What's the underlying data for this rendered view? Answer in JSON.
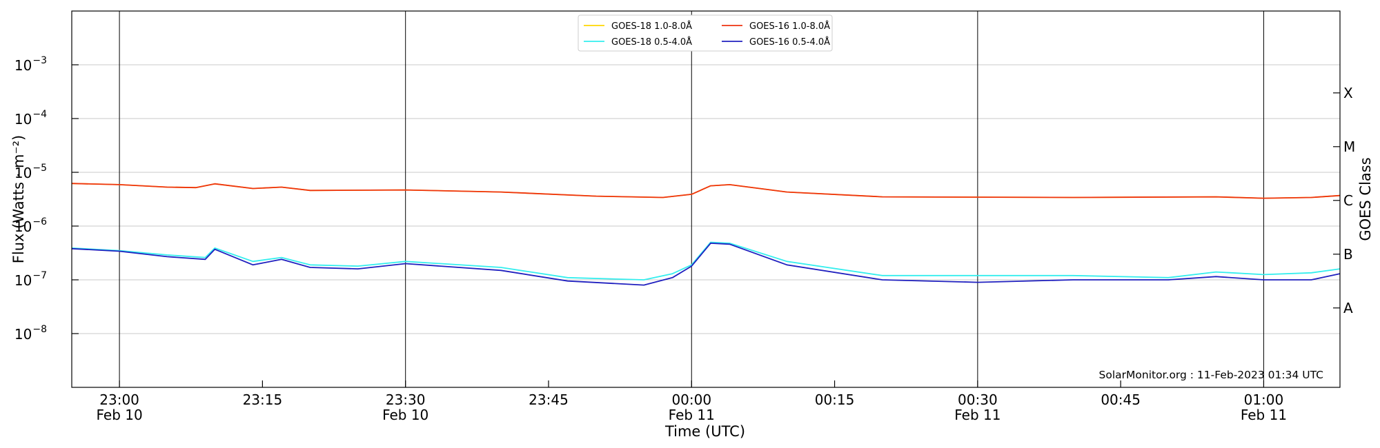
{
  "chart_data": {
    "type": "line",
    "xlabel": "Time (UTC)",
    "ylabel": "Flux (Watts · m⁻²)",
    "ylabel_right": "GOES Class",
    "credit": "SolarMonitor.org : 11-Feb-2023 01:34 UTC",
    "y_scale": "log",
    "ylim": [
      1e-09,
      0.01
    ],
    "xlim": [
      "2023-02-10 22:55",
      "2023-02-11 01:08"
    ],
    "grid": "horizontal at decades; vertical lines every 30 min",
    "legend_position": "top-center",
    "x_ticks": [
      {
        "t": "2023-02-10 23:00",
        "time": "23:00",
        "date": "Feb 10"
      },
      {
        "t": "2023-02-10 23:15",
        "time": "23:15",
        "date": ""
      },
      {
        "t": "2023-02-10 23:30",
        "time": "23:30",
        "date": "Feb 10"
      },
      {
        "t": "2023-02-10 23:45",
        "time": "23:45",
        "date": ""
      },
      {
        "t": "2023-02-11 00:00",
        "time": "00:00",
        "date": "Feb 11"
      },
      {
        "t": "2023-02-11 00:15",
        "time": "00:15",
        "date": ""
      },
      {
        "t": "2023-02-11 00:30",
        "time": "00:30",
        "date": "Feb 11"
      },
      {
        "t": "2023-02-11 00:45",
        "time": "00:45",
        "date": ""
      },
      {
        "t": "2023-02-11 01:00",
        "time": "01:00",
        "date": "Feb 11"
      }
    ],
    "vertical_lines": [
      "2023-02-10 23:00",
      "2023-02-10 23:30",
      "2023-02-11 00:00",
      "2023-02-11 00:30",
      "2023-02-11 01:00"
    ],
    "y_ticks": [
      {
        "value": 1e-08,
        "base": "10",
        "exp": "−8"
      },
      {
        "value": 1e-07,
        "base": "10",
        "exp": "−7"
      },
      {
        "value": 1e-06,
        "base": "10",
        "exp": "−6"
      },
      {
        "value": 1e-05,
        "base": "10",
        "exp": "−5"
      },
      {
        "value": 0.0001,
        "base": "10",
        "exp": "−4"
      },
      {
        "value": 0.001,
        "base": "10",
        "exp": "−3"
      }
    ],
    "class_labels": [
      {
        "label": "A",
        "value": 3e-08
      },
      {
        "label": "B",
        "value": 3e-07
      },
      {
        "label": "C",
        "value": 3e-06
      },
      {
        "label": "M",
        "value": 3e-05
      },
      {
        "label": "X",
        "value": 0.0003
      }
    ],
    "series": [
      {
        "name": "GOES-18 1.0-8.0Å",
        "color": "#ffd700",
        "points": [
          [
            "2023-02-10 22:55",
            6.2e-06
          ],
          [
            "2023-02-10 23:00",
            5.9e-06
          ],
          [
            "2023-02-10 23:05",
            5.3e-06
          ],
          [
            "2023-02-10 23:08",
            5.2e-06
          ],
          [
            "2023-02-10 23:10",
            6.1e-06
          ],
          [
            "2023-02-10 23:14",
            5e-06
          ],
          [
            "2023-02-10 23:17",
            5.3e-06
          ],
          [
            "2023-02-10 23:20",
            4.6e-06
          ],
          [
            "2023-02-10 23:30",
            4.7e-06
          ],
          [
            "2023-02-10 23:40",
            4.3e-06
          ],
          [
            "2023-02-10 23:50",
            3.6e-06
          ],
          [
            "2023-02-10 23:57",
            3.4e-06
          ],
          [
            "2023-02-11 00:00",
            3.9e-06
          ],
          [
            "2023-02-11 00:02",
            5.6e-06
          ],
          [
            "2023-02-11 00:04",
            5.9e-06
          ],
          [
            "2023-02-11 00:10",
            4.3e-06
          ],
          [
            "2023-02-11 00:20",
            3.5e-06
          ],
          [
            "2023-02-11 00:40",
            3.4e-06
          ],
          [
            "2023-02-11 00:55",
            3.5e-06
          ],
          [
            "2023-02-11 01:00",
            3.3e-06
          ],
          [
            "2023-02-11 01:05",
            3.4e-06
          ],
          [
            "2023-02-11 01:08",
            3.7e-06
          ]
        ]
      },
      {
        "name": "GOES-18 0.5-4.0Å",
        "color": "#33eeee",
        "points": [
          [
            "2023-02-10 22:55",
            3.9e-07
          ],
          [
            "2023-02-10 23:00",
            3.5e-07
          ],
          [
            "2023-02-10 23:05",
            2.9e-07
          ],
          [
            "2023-02-10 23:09",
            2.6e-07
          ],
          [
            "2023-02-10 23:10",
            3.9e-07
          ],
          [
            "2023-02-10 23:14",
            2.2e-07
          ],
          [
            "2023-02-10 23:17",
            2.6e-07
          ],
          [
            "2023-02-10 23:20",
            1.9e-07
          ],
          [
            "2023-02-10 23:25",
            1.8e-07
          ],
          [
            "2023-02-10 23:30",
            2.2e-07
          ],
          [
            "2023-02-10 23:40",
            1.7e-07
          ],
          [
            "2023-02-10 23:47",
            1.1e-07
          ],
          [
            "2023-02-10 23:55",
            1e-07
          ],
          [
            "2023-02-10 23:58",
            1.3e-07
          ],
          [
            "2023-02-11 00:00",
            1.9e-07
          ],
          [
            "2023-02-11 00:02",
            5e-07
          ],
          [
            "2023-02-11 00:04",
            4.8e-07
          ],
          [
            "2023-02-11 00:10",
            2.2e-07
          ],
          [
            "2023-02-11 00:20",
            1.2e-07
          ],
          [
            "2023-02-11 00:30",
            1.2e-07
          ],
          [
            "2023-02-11 00:40",
            1.2e-07
          ],
          [
            "2023-02-11 00:50",
            1.1e-07
          ],
          [
            "2023-02-11 00:55",
            1.4e-07
          ],
          [
            "2023-02-11 01:00",
            1.25e-07
          ],
          [
            "2023-02-11 01:05",
            1.35e-07
          ],
          [
            "2023-02-11 01:08",
            1.6e-07
          ]
        ]
      },
      {
        "name": "GOES-16 1.0-8.0Å",
        "color": "#ee3311",
        "points": [
          [
            "2023-02-10 22:55",
            6.2e-06
          ],
          [
            "2023-02-10 23:00",
            5.9e-06
          ],
          [
            "2023-02-10 23:05",
            5.3e-06
          ],
          [
            "2023-02-10 23:08",
            5.2e-06
          ],
          [
            "2023-02-10 23:10",
            6.1e-06
          ],
          [
            "2023-02-10 23:14",
            5e-06
          ],
          [
            "2023-02-10 23:17",
            5.3e-06
          ],
          [
            "2023-02-10 23:20",
            4.6e-06
          ],
          [
            "2023-02-10 23:30",
            4.7e-06
          ],
          [
            "2023-02-10 23:40",
            4.3e-06
          ],
          [
            "2023-02-10 23:50",
            3.6e-06
          ],
          [
            "2023-02-10 23:57",
            3.4e-06
          ],
          [
            "2023-02-11 00:00",
            3.9e-06
          ],
          [
            "2023-02-11 00:02",
            5.6e-06
          ],
          [
            "2023-02-11 00:04",
            5.9e-06
          ],
          [
            "2023-02-11 00:10",
            4.3e-06
          ],
          [
            "2023-02-11 00:20",
            3.5e-06
          ],
          [
            "2023-02-11 00:40",
            3.4e-06
          ],
          [
            "2023-02-11 00:55",
            3.5e-06
          ],
          [
            "2023-02-11 01:00",
            3.3e-06
          ],
          [
            "2023-02-11 01:05",
            3.4e-06
          ],
          [
            "2023-02-11 01:08",
            3.7e-06
          ]
        ]
      },
      {
        "name": "GOES-16 0.5-4.0Å",
        "color": "#1f1fbf",
        "points": [
          [
            "2023-02-10 22:55",
            3.8e-07
          ],
          [
            "2023-02-10 23:00",
            3.4e-07
          ],
          [
            "2023-02-10 23:05",
            2.7e-07
          ],
          [
            "2023-02-10 23:09",
            2.4e-07
          ],
          [
            "2023-02-10 23:10",
            3.7e-07
          ],
          [
            "2023-02-10 23:14",
            1.9e-07
          ],
          [
            "2023-02-10 23:17",
            2.4e-07
          ],
          [
            "2023-02-10 23:20",
            1.7e-07
          ],
          [
            "2023-02-10 23:25",
            1.6e-07
          ],
          [
            "2023-02-10 23:30",
            2e-07
          ],
          [
            "2023-02-10 23:40",
            1.5e-07
          ],
          [
            "2023-02-10 23:47",
            9.5e-08
          ],
          [
            "2023-02-10 23:55",
            8e-08
          ],
          [
            "2023-02-10 23:58",
            1.1e-07
          ],
          [
            "2023-02-11 00:00",
            1.8e-07
          ],
          [
            "2023-02-11 00:02",
            4.8e-07
          ],
          [
            "2023-02-11 00:04",
            4.6e-07
          ],
          [
            "2023-02-11 00:10",
            1.9e-07
          ],
          [
            "2023-02-11 00:20",
            1e-07
          ],
          [
            "2023-02-11 00:30",
            9e-08
          ],
          [
            "2023-02-11 00:40",
            1e-07
          ],
          [
            "2023-02-11 00:50",
            1e-07
          ],
          [
            "2023-02-11 00:55",
            1.15e-07
          ],
          [
            "2023-02-11 01:00",
            1e-07
          ],
          [
            "2023-02-11 01:05",
            1e-07
          ],
          [
            "2023-02-11 01:08",
            1.3e-07
          ]
        ]
      }
    ]
  }
}
